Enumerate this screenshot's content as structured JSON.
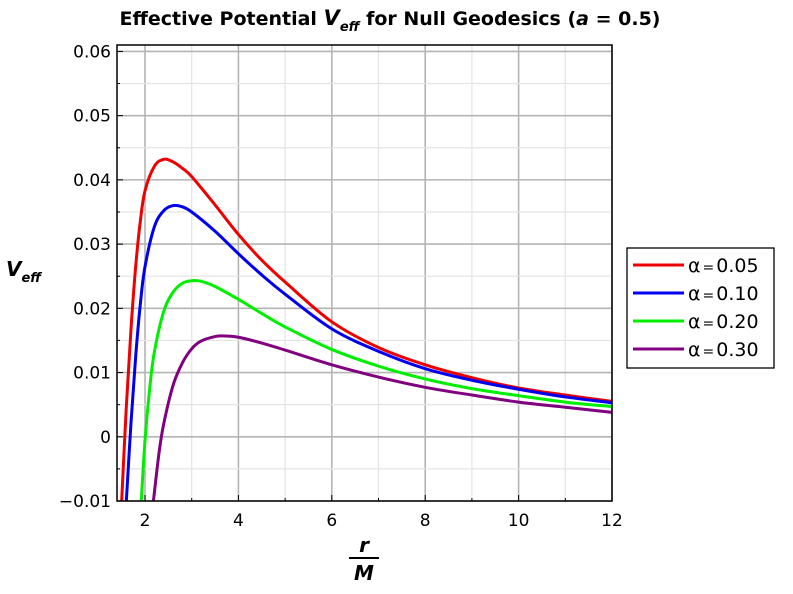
{
  "chart_data": {
    "type": "line",
    "title": {
      "prefix": "Effective Potential ",
      "symbol": "V",
      "symbol_sub": "eff",
      "middle": " for Null Geodesics (",
      "param": "a",
      "suffix": " = 0.5)"
    },
    "ylabel": {
      "symbol": "V",
      "sub": "eff"
    },
    "xlabel": {
      "numerator": "r",
      "denominator": "M"
    },
    "xlim": [
      1.4,
      12
    ],
    "ylim": [
      -0.01,
      0.061
    ],
    "x_ticks": [
      2,
      4,
      6,
      8,
      10,
      12
    ],
    "x_tick_labels": [
      "2",
      "4",
      "6",
      "8",
      "10",
      "12"
    ],
    "y_ticks": [
      -0.01,
      0,
      0.01,
      0.02,
      0.03,
      0.04,
      0.05,
      0.06
    ],
    "y_tick_labels": [
      "−0.01",
      "0",
      "0.01",
      "0.02",
      "0.03",
      "0.04",
      "0.05",
      "0.06"
    ],
    "grid": true,
    "legend_position": "right",
    "legend_symbol": "α",
    "series": [
      {
        "name": "0.05",
        "color": "#ee0000",
        "x": [
          1.5,
          1.6,
          1.7,
          1.8,
          1.9,
          2.0,
          2.2,
          2.4,
          2.6,
          2.8,
          3.0,
          3.5,
          4.0,
          4.5,
          5.0,
          6.0,
          7.0,
          8.0,
          9.0,
          10.0,
          11.0,
          12.0
        ],
        "y": [
          -0.01,
          0.0047,
          0.0168,
          0.0265,
          0.0336,
          0.0383,
          0.0421,
          0.0432,
          0.0428,
          0.0418,
          0.0405,
          0.0361,
          0.0315,
          0.0275,
          0.0241,
          0.0179,
          0.0139,
          0.0112,
          0.0092,
          0.0076,
          0.0065,
          0.0055
        ]
      },
      {
        "name": "0.10",
        "color": "#0000ee",
        "x": [
          1.6,
          1.7,
          1.8,
          1.9,
          2.0,
          2.2,
          2.4,
          2.6,
          2.8,
          3.0,
          3.5,
          4.0,
          4.5,
          5.0,
          6.0,
          7.0,
          8.0,
          9.0,
          10.0,
          11.0,
          12.0
        ],
        "y": [
          -0.01,
          0.0022,
          0.0125,
          0.0207,
          0.0265,
          0.0327,
          0.0352,
          0.036,
          0.0358,
          0.035,
          0.032,
          0.0285,
          0.0252,
          0.0222,
          0.0168,
          0.0133,
          0.0106,
          0.0088,
          0.0074,
          0.0062,
          0.0053
        ]
      },
      {
        "name": "0.20",
        "color": "#00ee00",
        "x": [
          1.92,
          2.0,
          2.1,
          2.2,
          2.4,
          2.6,
          2.8,
          3.0,
          3.2,
          3.5,
          4.0,
          4.5,
          5.0,
          6.0,
          7.0,
          8.0,
          9.0,
          10.0,
          11.0,
          12.0
        ],
        "y": [
          -0.01,
          -0.0005,
          0.0075,
          0.0132,
          0.0195,
          0.0225,
          0.0239,
          0.0243,
          0.0242,
          0.0234,
          0.0214,
          0.0192,
          0.0171,
          0.0136,
          0.011,
          0.009,
          0.0075,
          0.0064,
          0.0054,
          0.0047
        ]
      },
      {
        "name": "0.30",
        "color": "#800080",
        "x": [
          2.18,
          2.3,
          2.4,
          2.6,
          2.8,
          3.0,
          3.2,
          3.5,
          3.7,
          4.0,
          4.5,
          5.0,
          6.0,
          7.0,
          8.0,
          9.0,
          10.0,
          11.0,
          12.0
        ],
        "y": [
          -0.01,
          -0.0025,
          0.002,
          0.008,
          0.0115,
          0.0137,
          0.0149,
          0.0156,
          0.0157,
          0.0155,
          0.0146,
          0.0135,
          0.0112,
          0.0093,
          0.0077,
          0.0065,
          0.0054,
          0.0046,
          0.0038
        ]
      }
    ]
  }
}
